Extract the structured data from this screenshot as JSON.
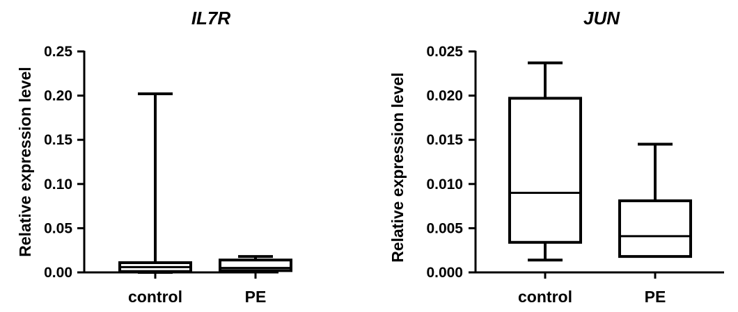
{
  "chart_data": [
    {
      "type": "box",
      "title": "IL7R",
      "xlabel": "",
      "ylabel": "Relative expression level",
      "ylim": [
        0,
        0.25
      ],
      "yticks": [
        "0.00",
        "0.05",
        "0.10",
        "0.15",
        "0.20",
        "0.25"
      ],
      "categories": [
        "control",
        "PE"
      ],
      "boxes": [
        {
          "category": "control",
          "min": 0.0,
          "q1": 0.001,
          "median": 0.006,
          "q3": 0.011,
          "max": 0.202
        },
        {
          "category": "PE",
          "min": 0.001,
          "q1": 0.002,
          "median": 0.005,
          "q3": 0.014,
          "max": 0.018
        }
      ],
      "grid": false,
      "legend": "none"
    },
    {
      "type": "box",
      "title": "JUN",
      "xlabel": "",
      "ylabel": "Relative expression level",
      "ylim": [
        0,
        0.025
      ],
      "yticks": [
        "0.000",
        "0.005",
        "0.010",
        "0.015",
        "0.020",
        "0.025"
      ],
      "categories": [
        "control",
        "PE"
      ],
      "boxes": [
        {
          "category": "control",
          "min": 0.0014,
          "q1": 0.0034,
          "median": 0.009,
          "q3": 0.0197,
          "max": 0.0237
        },
        {
          "category": "PE",
          "min": 0.0018,
          "q1": 0.0018,
          "median": 0.0041,
          "q3": 0.0081,
          "max": 0.0145
        }
      ],
      "grid": false,
      "legend": "none"
    }
  ],
  "colors": {
    "stroke": "#000000",
    "background": "#ffffff"
  }
}
